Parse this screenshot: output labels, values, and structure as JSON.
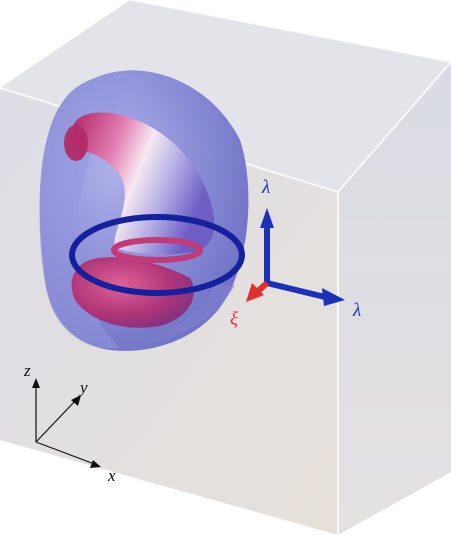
{
  "figure": {
    "labels": {
      "lambda_vertical": "λ",
      "lambda_horizontal": "λ",
      "xi": "ξ",
      "axis_z": "z",
      "axis_y": "y",
      "axis_x": "x"
    },
    "colors": {
      "box_face": "#e6e1df",
      "outer_shell": "#6a6ec9",
      "inner_tube": "#c0356f",
      "ring": "#14209c",
      "lambda_arrows": "#1b31b8",
      "xi_arrow": "#e03030",
      "axis_text": "#111111"
    }
  }
}
